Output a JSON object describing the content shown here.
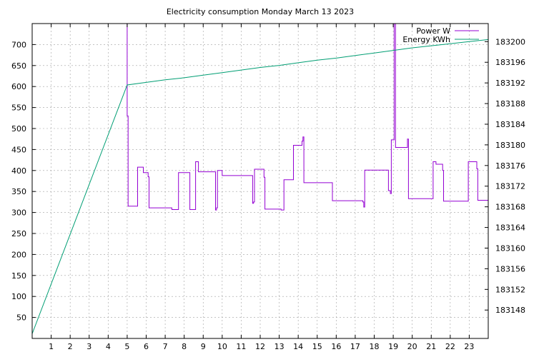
{
  "chart_data": {
    "type": "line",
    "title": "Electricity consumption Monday March 13 2023",
    "xlabel": "",
    "ylabel": "",
    "y2label": "",
    "grid": true,
    "legend_position": "top-right",
    "xlim": [
      0,
      24
    ],
    "ylim": [
      0,
      750
    ],
    "y2lim": [
      183142.5,
      183203.5
    ],
    "x_ticks": [
      1,
      2,
      3,
      4,
      5,
      6,
      7,
      8,
      9,
      10,
      11,
      12,
      13,
      14,
      15,
      16,
      17,
      18,
      19,
      20,
      21,
      22,
      23
    ],
    "y_ticks": [
      50,
      100,
      150,
      200,
      250,
      300,
      350,
      400,
      450,
      500,
      550,
      600,
      650,
      700
    ],
    "y2_ticks": [
      183148,
      183152,
      183156,
      183160,
      183164,
      183168,
      183172,
      183176,
      183180,
      183184,
      183188,
      183192,
      183196,
      183200
    ],
    "series": [
      {
        "name": "Power W",
        "axis": "y1",
        "color": "#9400d3",
        "step": true,
        "points": [
          [
            5.0,
            750
          ],
          [
            5.0,
            530
          ],
          [
            5.05,
            530
          ],
          [
            5.05,
            315
          ],
          [
            5.55,
            315
          ],
          [
            5.55,
            408
          ],
          [
            5.85,
            408
          ],
          [
            5.85,
            395
          ],
          [
            6.1,
            395
          ],
          [
            6.1,
            385
          ],
          [
            6.15,
            385
          ],
          [
            6.15,
            311
          ],
          [
            7.35,
            311
          ],
          [
            7.35,
            307
          ],
          [
            7.7,
            307
          ],
          [
            7.7,
            395
          ],
          [
            8.3,
            395
          ],
          [
            8.3,
            307
          ],
          [
            8.6,
            307
          ],
          [
            8.6,
            421
          ],
          [
            8.75,
            421
          ],
          [
            8.75,
            397
          ],
          [
            9.65,
            397
          ],
          [
            9.65,
            306
          ],
          [
            9.7,
            306
          ],
          [
            9.7,
            311
          ],
          [
            9.75,
            311
          ],
          [
            9.75,
            400
          ],
          [
            10.0,
            400
          ],
          [
            10.0,
            388
          ],
          [
            11.6,
            388
          ],
          [
            11.6,
            322
          ],
          [
            11.65,
            322
          ],
          [
            11.65,
            325
          ],
          [
            11.7,
            325
          ],
          [
            11.7,
            403
          ],
          [
            12.2,
            403
          ],
          [
            12.2,
            384
          ],
          [
            12.25,
            384
          ],
          [
            12.25,
            308
          ],
          [
            13.1,
            308
          ],
          [
            13.1,
            306
          ],
          [
            13.25,
            306
          ],
          [
            13.25,
            378
          ],
          [
            13.75,
            378
          ],
          [
            13.75,
            460
          ],
          [
            14.2,
            460
          ],
          [
            14.2,
            470
          ],
          [
            14.25,
            470
          ],
          [
            14.25,
            480
          ],
          [
            14.3,
            480
          ],
          [
            14.3,
            371
          ],
          [
            15.8,
            371
          ],
          [
            15.8,
            328
          ],
          [
            17.4,
            328
          ],
          [
            17.4,
            325
          ],
          [
            17.45,
            325
          ],
          [
            17.45,
            313
          ],
          [
            17.5,
            313
          ],
          [
            17.5,
            401
          ],
          [
            18.75,
            401
          ],
          [
            18.75,
            352
          ],
          [
            18.85,
            352
          ],
          [
            18.85,
            345
          ],
          [
            18.9,
            345
          ],
          [
            18.9,
            473
          ],
          [
            19.05,
            473
          ],
          [
            19.05,
            750
          ],
          [
            19.12,
            750
          ],
          [
            19.12,
            455
          ],
          [
            19.75,
            455
          ],
          [
            19.75,
            475
          ],
          [
            19.8,
            475
          ],
          [
            19.8,
            333
          ],
          [
            21.1,
            333
          ],
          [
            21.1,
            421
          ],
          [
            21.25,
            421
          ],
          [
            21.25,
            415
          ],
          [
            21.6,
            415
          ],
          [
            21.6,
            400
          ],
          [
            21.65,
            400
          ],
          [
            21.65,
            327
          ],
          [
            22.95,
            327
          ],
          [
            22.95,
            421
          ],
          [
            23.4,
            421
          ],
          [
            23.4,
            404
          ],
          [
            23.45,
            404
          ],
          [
            23.45,
            329
          ],
          [
            24.0,
            329
          ]
        ]
      },
      {
        "name": "Energy KWh",
        "axis": "y2",
        "color": "#009e73",
        "step": false,
        "points": [
          [
            0,
            183143.4
          ],
          [
            5.0,
            183191.6
          ],
          [
            6.0,
            183192.1
          ],
          [
            7.0,
            183192.6
          ],
          [
            8.0,
            183193.0
          ],
          [
            9.0,
            183193.5
          ],
          [
            10.0,
            183194.0
          ],
          [
            11.0,
            183194.5
          ],
          [
            12.0,
            183195.0
          ],
          [
            13.0,
            183195.4
          ],
          [
            14.0,
            183195.9
          ],
          [
            15.0,
            183196.4
          ],
          [
            16.0,
            183196.8
          ],
          [
            17.0,
            183197.3
          ],
          [
            18.0,
            183197.8
          ],
          [
            19.0,
            183198.3
          ],
          [
            20.0,
            183198.8
          ],
          [
            21.0,
            183199.2
          ],
          [
            22.0,
            183199.6
          ],
          [
            23.0,
            183200.0
          ],
          [
            24.0,
            183200.4
          ]
        ]
      }
    ]
  }
}
